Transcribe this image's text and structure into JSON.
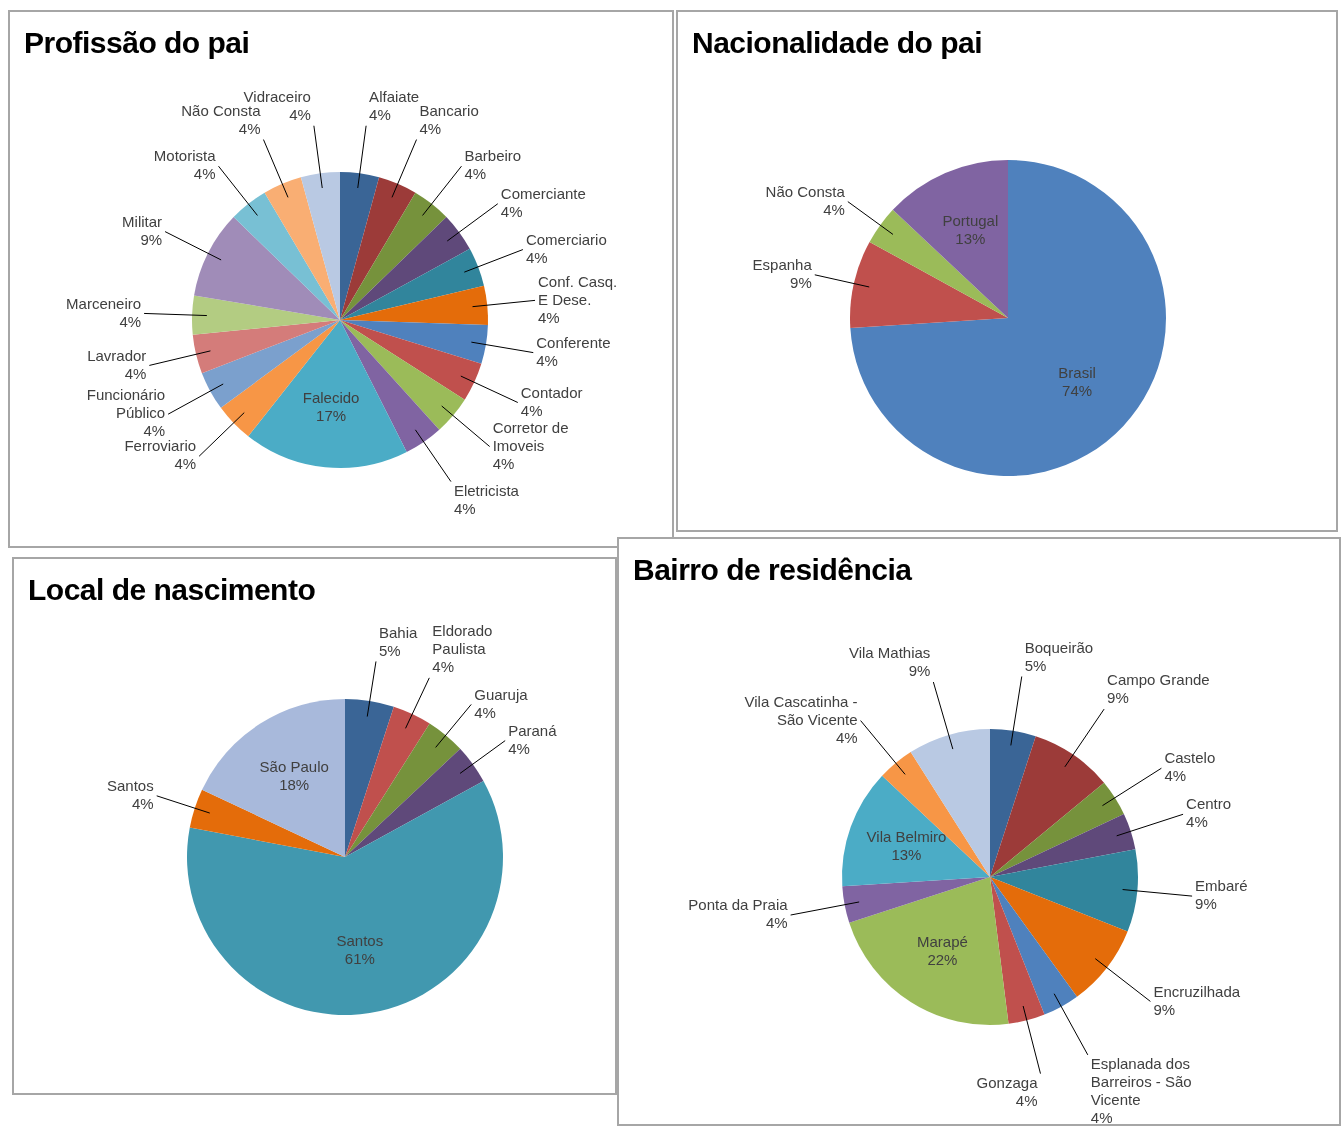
{
  "chart_data": [
    {
      "type": "pie",
      "title": "Profissão do pai",
      "categories": [
        "Alfaiate",
        "Bancario",
        "Barbeiro",
        "Comerciante",
        "Comerciario",
        "Conf. Casq. E Dese.",
        "Conferente",
        "Contador",
        "Corretor de Imoveis",
        "Eletricista",
        "Falecido",
        "Ferroviario",
        "Funcionário Público",
        "Lavrador",
        "Marceneiro",
        "Militar",
        "Motorista",
        "Não Consta",
        "Vidraceiro"
      ],
      "values": [
        4,
        4,
        4,
        4,
        4,
        4,
        4,
        4,
        4,
        4,
        17,
        4,
        4,
        4,
        4,
        9,
        4,
        4,
        4
      ],
      "value_labels": [
        "4%",
        "4%",
        "4%",
        "4%",
        "4%",
        "4%",
        "4%",
        "4%",
        "4%",
        "4%",
        "17%",
        "4%",
        "4%",
        "4%",
        "4%",
        "9%",
        "4%",
        "4%",
        "4%"
      ],
      "colors": [
        "#3a6596",
        "#9c3b39",
        "#76923c",
        "#5f497a",
        "#31859c",
        "#e46c0a",
        "#4f81bd",
        "#c0504d",
        "#9bbb59",
        "#8064a2",
        "#4bacc6",
        "#f79646",
        "#7ba0cd",
        "#d47c7a",
        "#b3cc82",
        "#a08cb8",
        "#78c0d4",
        "#f9ae73",
        "#b9c9e3"
      ]
    },
    {
      "type": "pie",
      "title": "Nacionalidade do pai",
      "categories": [
        "Brasil",
        "Espanha",
        "Não Consta",
        "Portugal"
      ],
      "values": [
        74,
        9,
        4,
        13
      ],
      "value_labels": [
        "74%",
        "9%",
        "4%",
        "13%"
      ],
      "colors": [
        "#4f81bd",
        "#c0504d",
        "#9bbb59",
        "#8064a2"
      ]
    },
    {
      "type": "pie",
      "title": "Local de nascimento",
      "categories": [
        "Bahia",
        "Eldorado Paulista",
        "Guaruja",
        "Paraná",
        "Santos",
        "Santos",
        "São Paulo"
      ],
      "values": [
        5,
        4,
        4,
        4,
        61,
        4,
        18
      ],
      "value_labels": [
        "5%",
        "4%",
        "4%",
        "4%",
        "61%",
        "4%",
        "18%"
      ],
      "colors": [
        "#3a6596",
        "#c0504d",
        "#76923c",
        "#5f497a",
        "#4198af",
        "#e46c0a",
        "#a8b9db"
      ]
    },
    {
      "type": "pie",
      "title": "Bairro de residência",
      "categories": [
        "Boqueirão",
        "Campo Grande",
        "Castelo",
        "Centro",
        "Embaré",
        "Encruzilhada",
        "Esplanada dos Barreiros - São Vicente",
        "Gonzaga",
        "Marapé",
        "Ponta da Praia",
        "Vila Belmiro",
        "Vila Cascatinha - São Vicente",
        "Vila Mathias"
      ],
      "values": [
        5,
        9,
        4,
        4,
        9,
        9,
        4,
        4,
        22,
        4,
        13,
        4,
        9
      ],
      "value_labels": [
        "5%",
        "9%",
        "4%",
        "4%",
        "9%",
        "9%",
        "4%",
        "4%",
        "22%",
        "4%",
        "13%",
        "4%",
        "9%"
      ],
      "colors": [
        "#3a6596",
        "#9c3b39",
        "#76923c",
        "#5f497a",
        "#31859c",
        "#e46c0a",
        "#4f81bd",
        "#c0504d",
        "#9bbb59",
        "#8064a2",
        "#4bacc6",
        "#f79646",
        "#b9c9e3"
      ]
    }
  ]
}
